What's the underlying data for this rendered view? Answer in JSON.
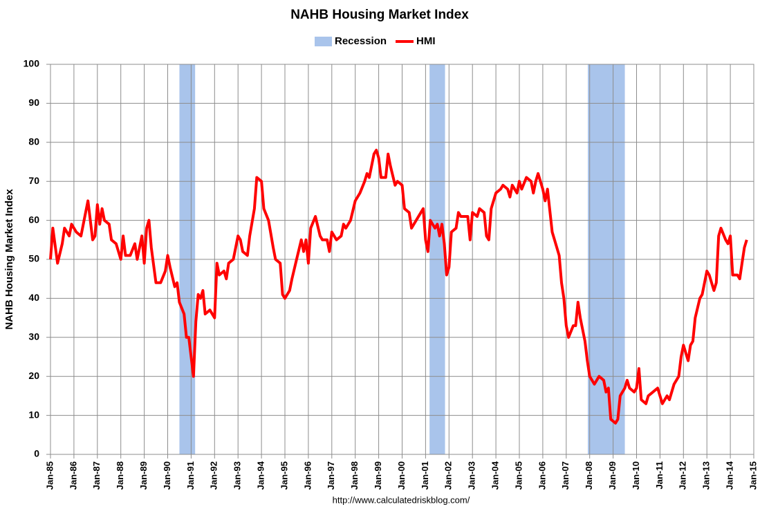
{
  "chart_data": {
    "type": "line",
    "title": "NAHB Housing Market Index",
    "ylabel": "NAHB Housing Market Index",
    "source": "http://www.calculatedriskblog.com/",
    "recession": {
      "name": "Recession",
      "color": "#a9c4eb",
      "spans": [
        [
          1990.5,
          1991.17
        ],
        [
          2001.17,
          2001.83
        ],
        [
          2007.92,
          2009.5
        ]
      ]
    },
    "series": [
      {
        "name": "HMI",
        "color": "#ff0000",
        "x": [
          1985.0,
          1985.1,
          1985.3,
          1985.5,
          1985.6,
          1985.8,
          1985.9,
          1986.1,
          1986.3,
          1986.5,
          1986.6,
          1986.8,
          1986.9,
          1987.0,
          1987.1,
          1987.2,
          1987.3,
          1987.5,
          1987.6,
          1987.8,
          1988.0,
          1988.1,
          1988.2,
          1988.4,
          1988.6,
          1988.7,
          1988.9,
          1989.0,
          1989.1,
          1989.2,
          1989.3,
          1989.5,
          1989.7,
          1989.9,
          1990.0,
          1990.1,
          1990.3,
          1990.4,
          1990.5,
          1990.7,
          1990.8,
          1990.9,
          1991.0,
          1991.1,
          1991.2,
          1991.3,
          1991.4,
          1991.5,
          1991.6,
          1991.8,
          1992.0,
          1992.1,
          1992.2,
          1992.4,
          1992.5,
          1992.6,
          1992.8,
          1993.0,
          1993.1,
          1993.2,
          1993.4,
          1993.5,
          1993.7,
          1993.8,
          1994.0,
          1994.1,
          1994.3,
          1994.5,
          1994.6,
          1994.8,
          1994.9,
          1995.0,
          1995.2,
          1995.3,
          1995.5,
          1995.7,
          1995.8,
          1995.9,
          1996.0,
          1996.1,
          1996.3,
          1996.5,
          1996.6,
          1996.8,
          1996.9,
          1997.0,
          1997.2,
          1997.4,
          1997.5,
          1997.6,
          1997.8,
          1998.0,
          1998.2,
          1998.4,
          1998.5,
          1998.6,
          1998.8,
          1998.9,
          1999.0,
          1999.1,
          1999.3,
          1999.4,
          1999.5,
          1999.7,
          1999.8,
          2000.0,
          2000.1,
          2000.3,
          2000.4,
          2000.6,
          2000.8,
          2000.9,
          2001.0,
          2001.1,
          2001.2,
          2001.4,
          2001.5,
          2001.6,
          2001.7,
          2001.8,
          2001.9,
          2002.0,
          2002.1,
          2002.3,
          2002.4,
          2002.5,
          2002.8,
          2002.9,
          2003.0,
          2003.2,
          2003.3,
          2003.5,
          2003.6,
          2003.7,
          2003.8,
          2004.0,
          2004.2,
          2004.3,
          2004.5,
          2004.6,
          2004.7,
          2004.9,
          2005.0,
          2005.1,
          2005.3,
          2005.5,
          2005.6,
          2005.7,
          2005.8,
          2006.0,
          2006.1,
          2006.2,
          2006.4,
          2006.5,
          2006.7,
          2006.8,
          2006.9,
          2007.0,
          2007.1,
          2007.3,
          2007.4,
          2007.5,
          2007.6,
          2007.8,
          2007.9,
          2008.0,
          2008.1,
          2008.2,
          2008.4,
          2008.6,
          2008.7,
          2008.8,
          2008.9,
          2009.1,
          2009.2,
          2009.3,
          2009.5,
          2009.6,
          2009.7,
          2009.9,
          2010.0,
          2010.1,
          2010.2,
          2010.4,
          2010.5,
          2010.7,
          2010.9,
          2011.0,
          2011.1,
          2011.3,
          2011.4,
          2011.6,
          2011.8,
          2011.9,
          2012.0,
          2012.2,
          2012.3,
          2012.4,
          2012.5,
          2012.7,
          2012.8,
          2013.0,
          2013.1,
          2013.3,
          2013.4,
          2013.5,
          2013.6,
          2013.8,
          2013.9,
          2014.0,
          2014.1,
          2014.3,
          2014.4,
          2014.5,
          2014.6,
          2014.7
        ],
        "values": [
          50,
          58,
          49,
          54,
          58,
          56,
          59,
          57,
          56,
          62,
          65,
          55,
          56,
          64,
          59,
          63,
          60,
          59,
          55,
          54,
          50,
          56,
          51,
          51,
          54,
          50,
          56,
          49,
          58,
          60,
          53,
          44,
          44,
          47,
          51,
          48,
          43,
          44,
          39,
          36,
          30,
          30,
          25,
          20,
          34,
          41,
          40,
          42,
          36,
          37,
          35,
          49,
          46,
          47,
          45,
          49,
          50,
          56,
          55,
          52,
          51,
          56,
          63,
          71,
          70,
          63,
          60,
          53,
          50,
          49,
          41,
          40,
          42,
          45,
          50,
          55,
          52,
          55,
          49,
          58,
          61,
          56,
          55,
          55,
          52,
          57,
          55,
          56,
          59,
          58,
          60,
          65,
          67,
          70,
          72,
          71,
          77,
          78,
          76,
          71,
          71,
          77,
          74,
          69,
          70,
          69,
          63,
          62,
          58,
          60,
          62,
          63,
          55,
          52,
          60,
          58,
          59,
          56,
          59,
          54,
          46,
          48,
          57,
          58,
          62,
          61,
          61,
          55,
          62,
          61,
          63,
          62,
          56,
          55,
          63,
          67,
          68,
          69,
          68,
          66,
          69,
          67,
          70,
          68,
          71,
          70,
          67,
          70,
          72,
          68,
          65,
          68,
          57,
          55,
          51,
          44,
          40,
          33,
          30,
          33,
          33,
          39,
          35,
          29,
          24,
          20,
          19,
          18,
          20,
          19,
          16,
          17,
          9,
          8,
          9,
          15,
          17,
          19,
          17,
          16,
          17,
          22,
          14,
          13,
          15,
          16,
          17,
          15,
          13,
          15,
          14,
          18,
          20,
          25,
          28,
          24,
          28,
          29,
          35,
          40,
          41,
          47,
          46,
          42,
          44,
          56,
          58,
          55,
          54,
          56,
          46,
          46,
          45,
          49,
          53,
          55
        ]
      }
    ],
    "xlim": [
      1985,
      2015
    ],
    "xticks": [
      {
        "value": 1985,
        "label": "Jan-85"
      },
      {
        "value": 1986,
        "label": "Jan-86"
      },
      {
        "value": 1987,
        "label": "Jan-87"
      },
      {
        "value": 1988,
        "label": "Jan-88"
      },
      {
        "value": 1989,
        "label": "Jan-89"
      },
      {
        "value": 1990,
        "label": "Jan-90"
      },
      {
        "value": 1991,
        "label": "Jan-91"
      },
      {
        "value": 1992,
        "label": "Jan-92"
      },
      {
        "value": 1993,
        "label": "Jan-93"
      },
      {
        "value": 1994,
        "label": "Jan-94"
      },
      {
        "value": 1995,
        "label": "Jan-95"
      },
      {
        "value": 1996,
        "label": "Jan-96"
      },
      {
        "value": 1997,
        "label": "Jan-97"
      },
      {
        "value": 1998,
        "label": "Jan-98"
      },
      {
        "value": 1999,
        "label": "Jan-99"
      },
      {
        "value": 2000,
        "label": "Jan-00"
      },
      {
        "value": 2001,
        "label": "Jan-01"
      },
      {
        "value": 2002,
        "label": "Jan-02"
      },
      {
        "value": 2003,
        "label": "Jan-03"
      },
      {
        "value": 2004,
        "label": "Jan-04"
      },
      {
        "value": 2005,
        "label": "Jan-05"
      },
      {
        "value": 2006,
        "label": "Jan-06"
      },
      {
        "value": 2007,
        "label": "Jan-07"
      },
      {
        "value": 2008,
        "label": "Jan-08"
      },
      {
        "value": 2009,
        "label": "Jan-09"
      },
      {
        "value": 2010,
        "label": "Jan-10"
      },
      {
        "value": 2011,
        "label": "Jan-11"
      },
      {
        "value": 2012,
        "label": "Jan-12"
      },
      {
        "value": 2013,
        "label": "Jan-13"
      },
      {
        "value": 2014,
        "label": "Jan-14"
      },
      {
        "value": 2015,
        "label": "Jan-15"
      }
    ],
    "ylim": [
      0,
      100
    ],
    "yticks": [
      0,
      10,
      20,
      30,
      40,
      50,
      60,
      70,
      80,
      90,
      100
    ],
    "grid": true
  }
}
